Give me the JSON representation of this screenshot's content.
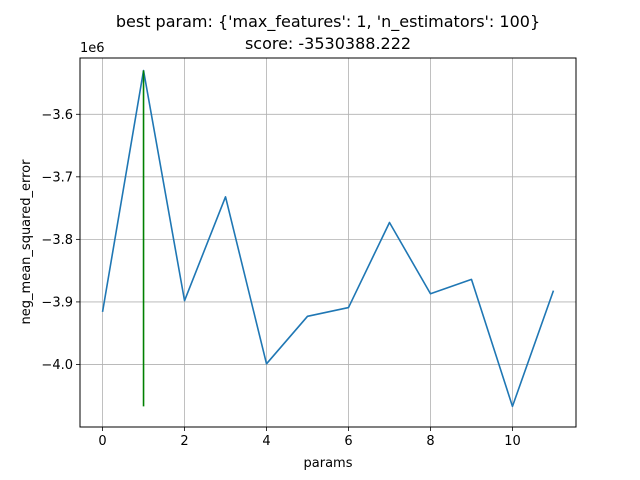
{
  "chart_data": {
    "type": "line",
    "title_line1": "best param: {'max_features': 1, 'n_estimators': 100}",
    "title_line2": "score: -3530388.222",
    "xlabel": "params",
    "ylabel": "neg_mean_squared_error",
    "y_offset_label": "1e6",
    "y_scale_factor": 1000000,
    "xlim": [
      -0.55,
      11.55
    ],
    "ylim": [
      -4.1,
      -3.51
    ],
    "x_ticks": [
      0,
      2,
      4,
      6,
      8,
      10
    ],
    "x_tick_labels": [
      "0",
      "2",
      "4",
      "6",
      "8",
      "10"
    ],
    "y_ticks": [
      -4.0,
      -3.9,
      -3.8,
      -3.7,
      -3.6
    ],
    "y_tick_labels": [
      "−4.0",
      "−3.9",
      "−3.8",
      "−3.7",
      "−3.6"
    ],
    "grid": true,
    "series": [
      {
        "color": "#1f77b4",
        "x": [
          0,
          1,
          2,
          3,
          4,
          5,
          6,
          7,
          8,
          9,
          10,
          11
        ],
        "y": [
          -3.916,
          -3.53,
          -3.898,
          -3.732,
          -3.999,
          -3.923,
          -3.909,
          -3.773,
          -3.887,
          -3.864,
          -4.067,
          -3.882
        ]
      }
    ],
    "best_marker": {
      "color": "#008000",
      "x": 1,
      "y_from": -4.067,
      "y_to": -3.53
    }
  }
}
